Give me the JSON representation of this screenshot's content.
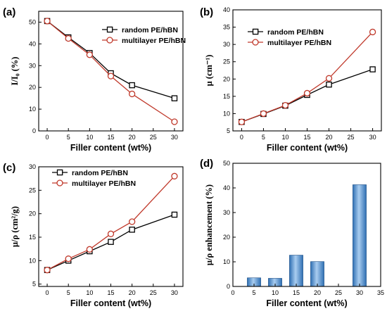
{
  "chart_data": [
    {
      "panel_label": "(a)",
      "type": "line",
      "xlabel": "Filler content (wt%)",
      "ylabel": "I/I₀ (%)",
      "x": [
        0,
        5,
        10,
        15,
        20,
        30
      ],
      "xlim": [
        -2,
        32
      ],
      "xticks": [
        0,
        5,
        10,
        15,
        20,
        25,
        30
      ],
      "ylim": [
        0,
        55
      ],
      "yticks": [
        0,
        10,
        20,
        30,
        40,
        50
      ],
      "legend_position": "top-right",
      "series": [
        {
          "name": "random PE/hBN",
          "marker": "square",
          "color": "#000000",
          "values": [
            50.5,
            43,
            35.8,
            26.5,
            21,
            15
          ]
        },
        {
          "name": "multilayer PE/hBN",
          "marker": "circle",
          "color": "#c0392b",
          "values": [
            50.5,
            42.5,
            35,
            25.2,
            17,
            4.2
          ]
        }
      ]
    },
    {
      "panel_label": "(b)",
      "type": "line",
      "xlabel": "Filler content (wt%)",
      "ylabel": "μ (cm⁻¹)",
      "x": [
        0,
        5,
        10,
        15,
        20,
        30
      ],
      "xlim": [
        -2,
        32
      ],
      "xticks": [
        0,
        5,
        10,
        15,
        20,
        25,
        30
      ],
      "ylim": [
        5,
        40
      ],
      "yticks": [
        5,
        10,
        15,
        20,
        25,
        30,
        35,
        40
      ],
      "legend_position": "top-left",
      "series": [
        {
          "name": "random PE/hBN",
          "marker": "square",
          "color": "#000000",
          "values": [
            7.6,
            9.9,
            12.3,
            15.4,
            18.4,
            22.8
          ]
        },
        {
          "name": "multilayer PE/hBN",
          "marker": "circle",
          "color": "#c0392b",
          "values": [
            7.6,
            10,
            12.4,
            15.9,
            20.2,
            33.6
          ]
        }
      ]
    },
    {
      "panel_label": "(c)",
      "type": "line",
      "xlabel": "Filler content (wt%)",
      "ylabel": "μ/ρ (cm²/g)",
      "x": [
        0,
        5,
        10,
        15,
        20,
        30
      ],
      "xlim": [
        -2,
        32
      ],
      "xticks": [
        0,
        5,
        10,
        15,
        20,
        25,
        30
      ],
      "ylim": [
        4.5,
        30
      ],
      "yticks": [
        5,
        10,
        15,
        20,
        25,
        30
      ],
      "legend_position": "top-left",
      "series": [
        {
          "name": "random PE/hBN",
          "marker": "square",
          "color": "#000000",
          "values": [
            8,
            10,
            12,
            14,
            16.6,
            19.8
          ]
        },
        {
          "name": "multilayer PE/hBN",
          "marker": "circle",
          "color": "#c0392b",
          "values": [
            8,
            10.4,
            12.4,
            15.7,
            18.3,
            28
          ]
        }
      ]
    },
    {
      "panel_label": "(d)",
      "type": "bar",
      "xlabel": "Filler content (wt%)",
      "ylabel": "μ/ρ enhancement (%)",
      "xlim": [
        0,
        35
      ],
      "xticks": [
        0,
        5,
        10,
        15,
        20,
        25,
        30,
        35
      ],
      "ylim": [
        0,
        50
      ],
      "yticks": [
        0,
        10,
        20,
        30,
        40,
        50
      ],
      "bar_color": "#5b9bd5",
      "x": [
        5,
        10,
        15,
        20,
        30
      ],
      "values": [
        3.5,
        3.3,
        12.7,
        10.1,
        41.3
      ]
    }
  ]
}
